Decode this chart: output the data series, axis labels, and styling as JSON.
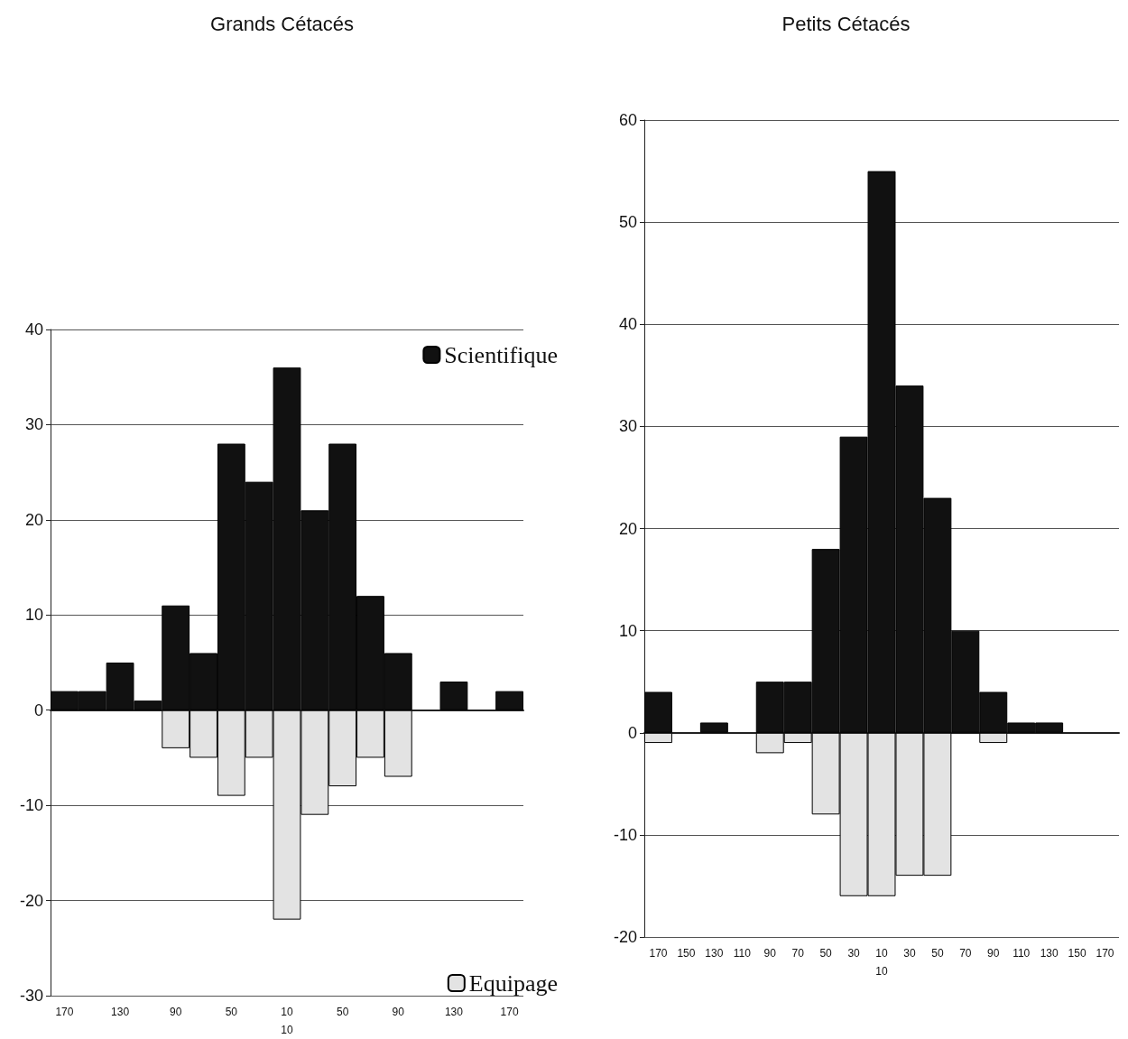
{
  "chart_data": [
    {
      "type": "bar",
      "title": "Grands Cétacés",
      "stacked": true,
      "grid": "y",
      "legend": "right",
      "categories": [
        "170",
        null,
        "130",
        null,
        "90",
        null,
        "50",
        null,
        "10\n10",
        null,
        "50",
        null,
        "90",
        null,
        "130",
        null,
        "170"
      ],
      "ylim": [
        -30,
        40
      ],
      "yticks": [
        -30,
        -20,
        -10,
        0,
        10,
        20,
        30,
        40
      ],
      "series": [
        {
          "name": "Scientifique",
          "color": "#111111",
          "values": [
            2,
            2,
            5,
            1,
            11,
            6,
            28,
            24,
            36,
            21,
            28,
            12,
            6,
            0,
            3,
            0,
            2
          ]
        },
        {
          "name": "Equipage",
          "color": "#e3e3e3",
          "values": [
            0,
            0,
            0,
            0,
            -4,
            -5,
            -9,
            -5,
            -22,
            -11,
            -8,
            -5,
            -7,
            0,
            0,
            0,
            0
          ]
        }
      ]
    },
    {
      "type": "bar",
      "title": "Petits Cétacés",
      "stacked": true,
      "grid": "y",
      "categories": [
        "170",
        "150",
        "130",
        "110",
        "90",
        "70",
        "50",
        "30",
        "10\n10",
        "30",
        "50",
        "70",
        "90",
        "110",
        "130",
        "150",
        "170"
      ],
      "ylim": [
        -20,
        60
      ],
      "yticks": [
        -20,
        -10,
        0,
        10,
        20,
        30,
        40,
        50,
        60
      ],
      "series": [
        {
          "color": "#111111",
          "values": [
            4,
            0,
            1,
            0,
            5,
            5,
            18,
            29,
            55,
            34,
            23,
            10,
            4,
            1,
            1,
            0,
            0
          ]
        },
        {
          "color": "#e3e3e3",
          "values": [
            -1,
            0,
            0,
            0,
            -2,
            -1,
            -8,
            -16,
            -16,
            -14,
            -14,
            0,
            -1,
            0,
            0,
            0,
            0
          ]
        }
      ]
    }
  ]
}
